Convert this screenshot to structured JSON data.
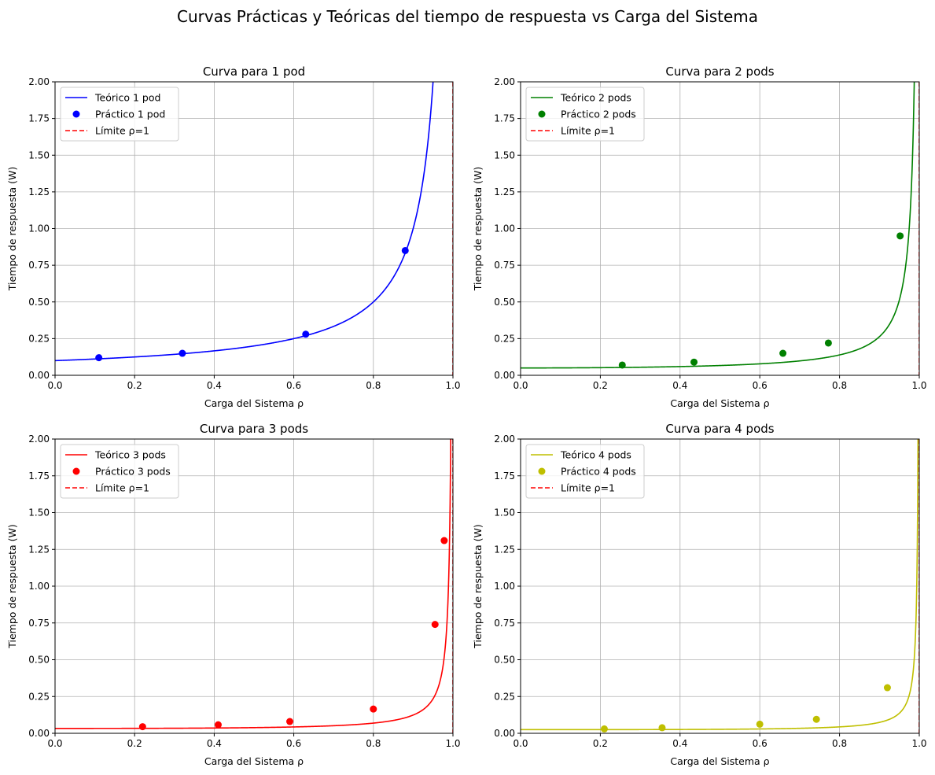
{
  "figure": {
    "suptitle": "Curvas Prácticas y Teóricas del tiempo de respuesta vs Carga del Sistema"
  },
  "chart_data": [
    {
      "type": "line",
      "title": "Curva para 1 pod",
      "xlabel": "Carga del Sistema ρ",
      "ylabel": "Tiempo de respuesta (W)",
      "xlim": [
        0,
        1
      ],
      "ylim": [
        0,
        2
      ],
      "xticks": [
        "0.0",
        "0.2",
        "0.4",
        "0.6",
        "0.8",
        "1.0"
      ],
      "yticks": [
        "0.00",
        "0.25",
        "0.50",
        "0.75",
        "1.00",
        "1.25",
        "1.50",
        "1.75",
        "2.00"
      ],
      "grid": true,
      "legend_position": "top-left",
      "color": "#0000ff",
      "series": [
        {
          "name": "Teórico 1 pod",
          "kind": "line",
          "base": 0.1,
          "pods": 1
        },
        {
          "name": "Práctico 1 pod",
          "kind": "scatter",
          "points": [
            [
              0.11,
              0.12
            ],
            [
              0.32,
              0.15
            ],
            [
              0.63,
              0.28
            ],
            [
              0.88,
              0.85
            ]
          ]
        },
        {
          "name": "Límite ρ=1",
          "kind": "vline",
          "x": 1.0,
          "color": "#ff0000"
        }
      ]
    },
    {
      "type": "line",
      "title": "Curva para 2 pods",
      "xlabel": "Carga del Sistema ρ",
      "ylabel": "Tiempo de respuesta (W)",
      "xlim": [
        0,
        1
      ],
      "ylim": [
        0,
        2
      ],
      "xticks": [
        "0.0",
        "0.2",
        "0.4",
        "0.6",
        "0.8",
        "1.0"
      ],
      "yticks": [
        "0.00",
        "0.25",
        "0.50",
        "0.75",
        "1.00",
        "1.25",
        "1.50",
        "1.75",
        "2.00"
      ],
      "grid": true,
      "legend_position": "top-left",
      "color": "#008000",
      "series": [
        {
          "name": "Teórico 2 pods",
          "kind": "line",
          "base": 0.05,
          "pods": 2
        },
        {
          "name": "Práctico 2 pods",
          "kind": "scatter",
          "points": [
            [
              0.255,
              0.07
            ],
            [
              0.435,
              0.09
            ],
            [
              0.658,
              0.15
            ],
            [
              0.772,
              0.22
            ],
            [
              0.952,
              0.95
            ]
          ]
        },
        {
          "name": "Límite ρ=1",
          "kind": "vline",
          "x": 1.0,
          "color": "#ff0000"
        }
      ]
    },
    {
      "type": "line",
      "title": "Curva para 3 pods",
      "xlabel": "Carga del Sistema ρ",
      "ylabel": "Tiempo de respuesta (W)",
      "xlim": [
        0,
        1
      ],
      "ylim": [
        0,
        2
      ],
      "xticks": [
        "0.0",
        "0.2",
        "0.4",
        "0.6",
        "0.8",
        "1.0"
      ],
      "yticks": [
        "0.00",
        "0.25",
        "0.50",
        "0.75",
        "1.00",
        "1.25",
        "1.50",
        "1.75",
        "2.00"
      ],
      "grid": true,
      "legend_position": "top-left",
      "color": "#ff0000",
      "series": [
        {
          "name": "Teórico 3 pods",
          "kind": "line",
          "base": 0.0333,
          "pods": 3
        },
        {
          "name": "Práctico 3 pods",
          "kind": "scatter",
          "points": [
            [
              0.22,
              0.045
            ],
            [
              0.41,
              0.058
            ],
            [
              0.59,
              0.08
            ],
            [
              0.8,
              0.165
            ],
            [
              0.955,
              0.74
            ],
            [
              0.978,
              1.31
            ]
          ]
        },
        {
          "name": "Límite ρ=1",
          "kind": "vline",
          "x": 1.0,
          "color": "#ff0000"
        }
      ]
    },
    {
      "type": "line",
      "title": "Curva para 4 pods",
      "xlabel": "Carga del Sistema ρ",
      "ylabel": "Tiempo de respuesta (W)",
      "xlim": [
        0,
        1
      ],
      "ylim": [
        0,
        2
      ],
      "xticks": [
        "0.0",
        "0.2",
        "0.4",
        "0.6",
        "0.8",
        "1.0"
      ],
      "yticks": [
        "0.00",
        "0.25",
        "0.50",
        "0.75",
        "1.00",
        "1.25",
        "1.50",
        "1.75",
        "2.00"
      ],
      "grid": true,
      "legend_position": "top-left",
      "color": "#bfbf00",
      "series": [
        {
          "name": "Teórico 4 pods",
          "kind": "line",
          "base": 0.025,
          "pods": 4
        },
        {
          "name": "Práctico 4 pods",
          "kind": "scatter",
          "points": [
            [
              0.21,
              0.03
            ],
            [
              0.355,
              0.038
            ],
            [
              0.6,
              0.062
            ],
            [
              0.742,
              0.095
            ],
            [
              0.92,
              0.31
            ]
          ]
        },
        {
          "name": "Límite ρ=1",
          "kind": "vline",
          "x": 1.0,
          "color": "#ff0000"
        }
      ]
    }
  ]
}
